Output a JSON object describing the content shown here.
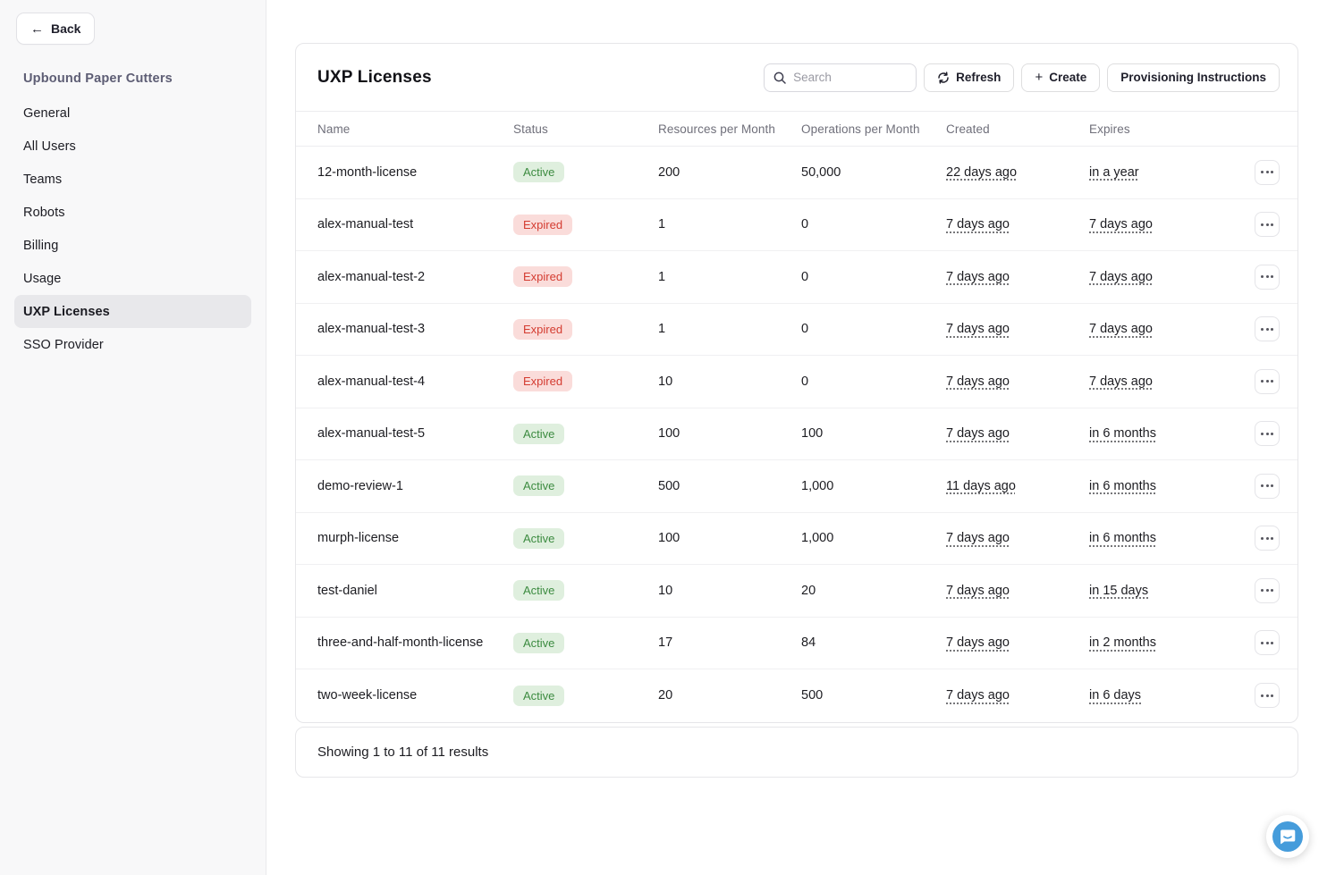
{
  "sidebar": {
    "back_label": "Back",
    "org_name": "Upbound Paper Cutters",
    "items": [
      {
        "label": "General",
        "active": false
      },
      {
        "label": "All Users",
        "active": false
      },
      {
        "label": "Teams",
        "active": false
      },
      {
        "label": "Robots",
        "active": false
      },
      {
        "label": "Billing",
        "active": false
      },
      {
        "label": "Usage",
        "active": false
      },
      {
        "label": "UXP Licenses",
        "active": true
      },
      {
        "label": "SSO Provider",
        "active": false
      }
    ]
  },
  "panel": {
    "title": "UXP Licenses",
    "search_placeholder": "Search",
    "refresh_label": "Refresh",
    "create_label": "Create",
    "provisioning_label": "Provisioning Instructions"
  },
  "table": {
    "columns": [
      "Name",
      "Status",
      "Resources per Month",
      "Operations per Month",
      "Created",
      "Expires"
    ],
    "rows": [
      {
        "name": "12-month-license",
        "status": "Active",
        "resources": "200",
        "operations": "50,000",
        "created": "22 days ago",
        "expires": "in a year"
      },
      {
        "name": "alex-manual-test",
        "status": "Expired",
        "resources": "1",
        "operations": "0",
        "created": "7 days ago",
        "expires": "7 days ago"
      },
      {
        "name": "alex-manual-test-2",
        "status": "Expired",
        "resources": "1",
        "operations": "0",
        "created": "7 days ago",
        "expires": "7 days ago"
      },
      {
        "name": "alex-manual-test-3",
        "status": "Expired",
        "resources": "1",
        "operations": "0",
        "created": "7 days ago",
        "expires": "7 days ago"
      },
      {
        "name": "alex-manual-test-4",
        "status": "Expired",
        "resources": "10",
        "operations": "0",
        "created": "7 days ago",
        "expires": "7 days ago"
      },
      {
        "name": "alex-manual-test-5",
        "status": "Active",
        "resources": "100",
        "operations": "100",
        "created": "7 days ago",
        "expires": "in 6 months"
      },
      {
        "name": "demo-review-1",
        "status": "Active",
        "resources": "500",
        "operations": "1,000",
        "created": "11 days ago",
        "expires": "in 6 months"
      },
      {
        "name": "murph-license",
        "status": "Active",
        "resources": "100",
        "operations": "1,000",
        "created": "7 days ago",
        "expires": "in 6 months"
      },
      {
        "name": "test-daniel",
        "status": "Active",
        "resources": "10",
        "operations": "20",
        "created": "7 days ago",
        "expires": "in 15 days"
      },
      {
        "name": "three-and-half-month-license",
        "status": "Active",
        "resources": "17",
        "operations": "84",
        "created": "7 days ago",
        "expires": "in 2 months"
      },
      {
        "name": "two-week-license",
        "status": "Active",
        "resources": "20",
        "operations": "500",
        "created": "7 days ago",
        "expires": "in 6 days"
      }
    ],
    "footer": "Showing 1 to 11 of 11 results"
  },
  "colors": {
    "status_active_bg": "#DFEFDE",
    "status_active_text": "#3C8B40",
    "status_expired_bg": "#FADCDA",
    "status_expired_text": "#D43C31",
    "chat_launcher_blue": "#459CDB"
  }
}
